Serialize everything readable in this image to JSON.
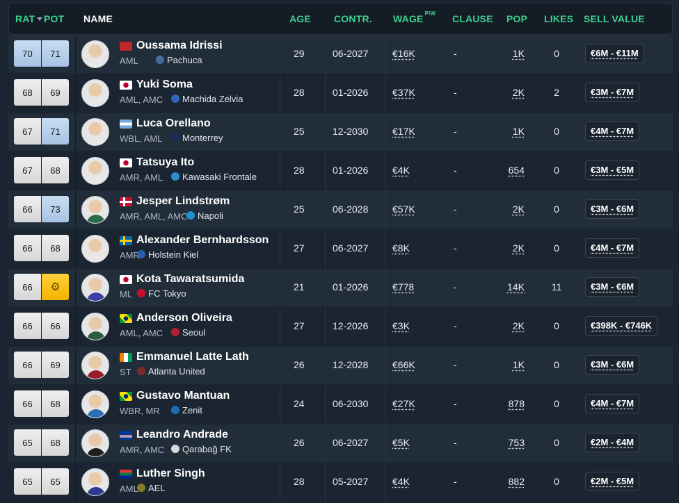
{
  "header": {
    "rat": "RAT",
    "pot": "POT",
    "name": "NAME",
    "age": "AGE",
    "contract": "CONTR.",
    "wage": "WAGE",
    "wage_unit": "P/W",
    "clause": "CLAUSE",
    "pop": "POP",
    "likes": "LIKES",
    "sell_value": "SELL VALUE"
  },
  "colors": {
    "accent": "#3fd18f",
    "bg": "#1b2532",
    "row_alt": "#222d3a",
    "potential_up": "#a7c3e2",
    "gold": "#f2b400"
  },
  "players": [
    {
      "rat": "70",
      "pot": "71",
      "rat_style": "up",
      "pot_style": "up",
      "name": "Oussama Idrissi",
      "flag": "morocco",
      "pos": "AML",
      "club": "Pachuca",
      "club_icon": "pachuca-crest",
      "age": "29",
      "contract": "06-2027",
      "wage": "€16K",
      "clause": "-",
      "pop": "1K",
      "likes": "0",
      "sell": "€6M - €11M",
      "shirt": "#e8e8e8"
    },
    {
      "rat": "68",
      "pot": "69",
      "rat_style": "",
      "pot_style": "",
      "name": "Yuki Soma",
      "flag": "japan",
      "pos": "AML, AMC",
      "club": "Machida Zelvia",
      "club_icon": "machida-crest",
      "age": "28",
      "contract": "01-2026",
      "wage": "€37K",
      "clause": "-",
      "pop": "2K",
      "likes": "2",
      "sell": "€3M - €7M",
      "shirt": "#e8e8e8"
    },
    {
      "rat": "67",
      "pot": "71",
      "rat_style": "",
      "pot_style": "up",
      "name": "Luca Orellano",
      "flag": "argentina",
      "pos": "WBL, AML",
      "club": "Monterrey",
      "club_icon": "monterrey-crest",
      "age": "25",
      "contract": "12-2030",
      "wage": "€17K",
      "clause": "-",
      "pop": "1K",
      "likes": "0",
      "sell": "€4M - €7M",
      "shirt": "#e8e8e8"
    },
    {
      "rat": "67",
      "pot": "68",
      "rat_style": "",
      "pot_style": "",
      "name": "Tatsuya Ito",
      "flag": "japan",
      "pos": "AMR, AML",
      "club": "Kawasaki Frontale",
      "club_icon": "kawasaki-crest",
      "age": "28",
      "contract": "01-2026",
      "wage": "€4K",
      "clause": "-",
      "pop": "654",
      "likes": "0",
      "sell": "€3M - €5M",
      "shirt": "#e8e8e8"
    },
    {
      "rat": "66",
      "pot": "73",
      "rat_style": "",
      "pot_style": "up",
      "name": "Jesper Lindstrøm",
      "flag": "denmark",
      "pos": "AMR, AML, AMC",
      "club": "Napoli",
      "club_icon": "napoli-crest",
      "age": "25",
      "contract": "06-2028",
      "wage": "€57K",
      "clause": "-",
      "pop": "2K",
      "likes": "0",
      "sell": "€3M - €6M",
      "shirt": "#2b6b4a"
    },
    {
      "rat": "66",
      "pot": "68",
      "rat_style": "",
      "pot_style": "",
      "name": "Alexander Bernhardsson",
      "flag": "sweden",
      "pos": "AMR",
      "club": "Holstein Kiel",
      "club_icon": "holstein-crest",
      "age": "27",
      "contract": "06-2027",
      "wage": "€8K",
      "clause": "-",
      "pop": "2K",
      "likes": "0",
      "sell": "€4M - €7M",
      "shirt": "#e8e8e8"
    },
    {
      "rat": "66",
      "pot": "",
      "rat_style": "",
      "pot_style": "gold",
      "name": "Kota Tawaratsumida",
      "flag": "japan",
      "pos": "ML",
      "club": "FC Tokyo",
      "club_icon": "fc-tokyo-crest",
      "age": "21",
      "contract": "01-2026",
      "wage": "€778",
      "clause": "-",
      "pop": "14K",
      "likes": "11",
      "sell": "€3M - €6M",
      "shirt": "#3a3fa0"
    },
    {
      "rat": "66",
      "pot": "66",
      "rat_style": "",
      "pot_style": "",
      "name": "Anderson Oliveira",
      "flag": "brazil",
      "pos": "AML, AMC",
      "club": "Seoul",
      "club_icon": "seoul-crest",
      "age": "27",
      "contract": "12-2026",
      "wage": "€3K",
      "clause": "-",
      "pop": "2K",
      "likes": "0",
      "sell": "€398K - €746K",
      "shirt": "#2e5b3c"
    },
    {
      "rat": "66",
      "pot": "69",
      "rat_style": "",
      "pot_style": "",
      "name": "Emmanuel Latte Lath",
      "flag": "ivory-coast",
      "pos": "ST",
      "club": "Atlanta United",
      "club_icon": "atlanta-crest",
      "age": "26",
      "contract": "12-2028",
      "wage": "€66K",
      "clause": "-",
      "pop": "1K",
      "likes": "0",
      "sell": "€3M - €6M",
      "shirt": "#9a1b2b"
    },
    {
      "rat": "66",
      "pot": "68",
      "rat_style": "",
      "pot_style": "",
      "name": "Gustavo Mantuan",
      "flag": "brazil",
      "pos": "WBR, MR",
      "club": "Zenit",
      "club_icon": "zenit-crest",
      "age": "24",
      "contract": "06-2030",
      "wage": "€27K",
      "clause": "-",
      "pop": "878",
      "likes": "0",
      "sell": "€4M - €7M",
      "shirt": "#2a6fb4"
    },
    {
      "rat": "65",
      "pot": "68",
      "rat_style": "",
      "pot_style": "",
      "name": "Leandro Andrade",
      "flag": "cape-verde",
      "pos": "AMR, AMC",
      "club": "Qarabağ FK",
      "club_icon": "qarabag-crest",
      "age": "26",
      "contract": "06-2027",
      "wage": "€5K",
      "clause": "-",
      "pop": "753",
      "likes": "0",
      "sell": "€2M - €4M",
      "shirt": "#1f1f1f"
    },
    {
      "rat": "65",
      "pot": "65",
      "rat_style": "",
      "pot_style": "",
      "name": "Luther Singh",
      "flag": "south-africa",
      "pos": "AML",
      "club": "AEL",
      "club_icon": "ael-crest",
      "age": "28",
      "contract": "05-2027",
      "wage": "€4K",
      "clause": "-",
      "pop": "882",
      "likes": "0",
      "sell": "€2M - €5M",
      "shirt": "#2f3a8f"
    }
  ]
}
